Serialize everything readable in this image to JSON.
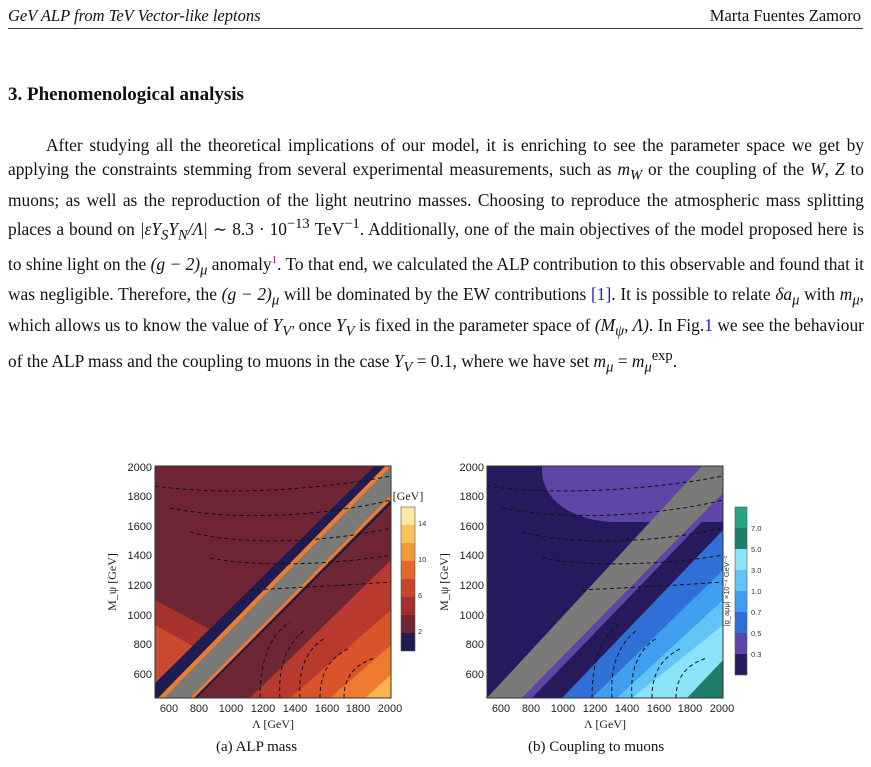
{
  "header": {
    "left": "GeV ALP from TeV Vector-like leptons",
    "right": "Marta Fuentes Zamoro"
  },
  "section": {
    "title": "3.   Phenomenological analysis"
  },
  "paragraph": {
    "l1": "After studying all the theoretical implications of our model, it is enriching to see the parameter",
    "l2": "space we get by applying the constraints stemming from several experimental measurements, such",
    "l3a": "as ",
    "l3b": " or the coupling of the ",
    "l3c": ", ",
    "l3d": " to muons; as well as the reproduction of the light neutrino",
    "l4a": "masses.  Choosing to reproduce the atmospheric mass splitting places a bound on ",
    "l5a": " TeV",
    "l5b": ".  Additionally, one of the main objectives of the model proposed here is to shine",
    "l6a": "light on the ",
    "l6b": " anomaly",
    "fn": "1",
    "l6c": ".  To that end, we calculated the ALP contribution to this observable",
    "l7a": "and found that it was negligible.  Therefore, the ",
    "l7b": " will be dominated by the EW contributions",
    "ref1": "[1]",
    "l8a": ".  It is possible to relate ",
    "l8b": " with ",
    "l8c": ", which allows us to know the value of ",
    "l8d": " once ",
    "l8e": " is fixed",
    "l9a": "in the parameter space of ",
    "l9b": ".  In Fig.",
    "fig": "1",
    "l9c": " we see the behaviour of the ALP mass and the coupling",
    "l10a": "to muons in the case ",
    "l10b": ", where we have set "
  },
  "math": {
    "mW": "m",
    "W": "W",
    "Z": "Z",
    "bound": "|εY",
    "eight": "8.3 · 10",
    "exp13": "−13",
    "exp1": "−1",
    "g2": "(g − 2)",
    "da": "δa",
    "mmu": "m",
    "YVp": "Y",
    "YV": "Y",
    "space": "(M",
    "case": "Y",
    "eq01": " = 0.1",
    "set": "m",
    "expsup": "exp"
  },
  "figure_a": {
    "caption": "(a)  ALP mass",
    "ylabel": "M_ψ [GeV]",
    "xlabel": "Λ [GeV]",
    "cbar_title": "[GeV]",
    "x_ticks": [
      "600",
      "800",
      "1000",
      "1200",
      "1400",
      "1600",
      "1800",
      "2000"
    ],
    "y_ticks": [
      "2000",
      "1800",
      "1600",
      "1400",
      "1200",
      "1000",
      "800",
      "600"
    ],
    "cbar_ticks": [
      "14",
      "10",
      "6",
      "2"
    ],
    "colors": {
      "bg": "#6e2634",
      "gray": "#7a7a78",
      "navy": "#1e1c52",
      "orange1": "#b8392e",
      "orange2": "#d9532b",
      "orange3": "#ee7c2e",
      "orange4": "#fbb44a"
    }
  },
  "figure_b": {
    "caption": "(b)  Coupling to muons",
    "ylabel": "M_ψ [GeV]",
    "xlabel": "Λ [GeV]",
    "cbar_title": "|g_aμμ| ×10⁻⁴ GeV⁻¹",
    "x_ticks": [
      "600",
      "800",
      "1000",
      "1200",
      "1400",
      "1600",
      "1800",
      "2000"
    ],
    "y_ticks": [
      "2000",
      "1800",
      "1600",
      "1400",
      "1200",
      "1000",
      "800",
      "600"
    ],
    "cbar_ticks": [
      "7.0",
      "5.0",
      "3.0",
      "1.0",
      "0.7",
      "0.5",
      "0.3"
    ],
    "colors": {
      "bg": "#27195e",
      "light": "#5e45a6",
      "gray": "#7a7a78",
      "blue1": "#2f6fd6",
      "blue2": "#3f9ef0",
      "blue3": "#62c4f5",
      "blue4": "#8ae3f7",
      "teal": "#1e7e6a"
    }
  }
}
